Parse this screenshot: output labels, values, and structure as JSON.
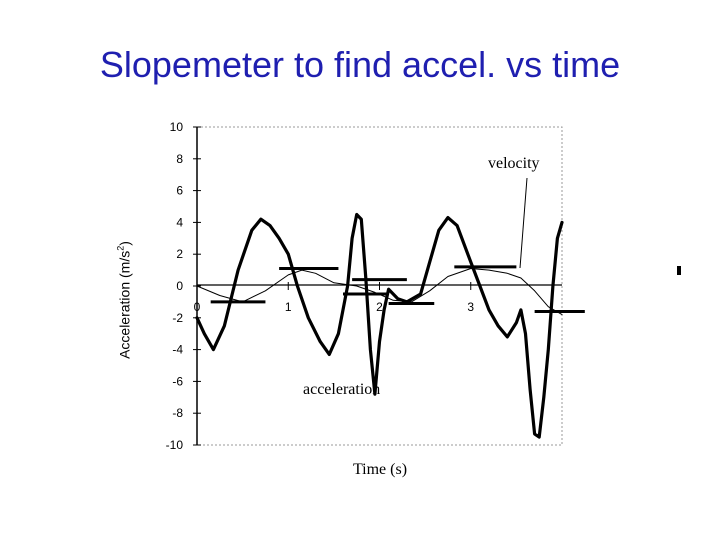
{
  "title": "Slopemeter to find accel. vs time",
  "chart_data": {
    "type": "line",
    "xlabel": "Time (s)",
    "ylabel_main": "Acceleration (m/s",
    "ylabel_sup": "2",
    "ylabel_tail": ")",
    "xlim": [
      0,
      4
    ],
    "ylim": [
      -10,
      10
    ],
    "y_ticks": [
      10,
      8,
      6,
      4,
      2,
      0,
      -2,
      -4,
      -6,
      -8,
      -10
    ],
    "x_ticks": [
      0,
      1,
      2,
      3
    ],
    "grid": false,
    "annotations": [
      "velocity",
      "acceleration"
    ],
    "series": [
      {
        "name": "acceleration",
        "x": [
          0,
          0.08,
          0.18,
          0.3,
          0.45,
          0.6,
          0.7,
          0.8,
          0.9,
          1.0,
          1.1,
          1.22,
          1.35,
          1.45,
          1.55,
          1.65,
          1.7,
          1.75,
          1.8,
          1.85,
          1.9,
          1.95,
          2.0,
          2.05,
          2.1,
          2.2,
          2.3,
          2.45,
          2.55,
          2.65,
          2.75,
          2.85,
          3.0,
          3.1,
          3.2,
          3.3,
          3.4,
          3.5,
          3.55,
          3.6,
          3.65,
          3.7,
          3.75,
          3.8,
          3.85,
          3.9,
          3.95,
          4.0
        ],
        "values": [
          -2,
          -3,
          -4,
          -2.5,
          1,
          3.5,
          4.2,
          3.8,
          3,
          2,
          0,
          -2,
          -3.5,
          -4.3,
          -3,
          0,
          3,
          4.5,
          4.2,
          0.5,
          -4,
          -6.8,
          -3.5,
          -1.5,
          -0.2,
          -0.8,
          -1,
          -0.5,
          1.5,
          3.5,
          4.3,
          3.8,
          1.5,
          0,
          -1.5,
          -2.5,
          -3.2,
          -2.3,
          -1.5,
          -3,
          -6.5,
          -9.3,
          -9.5,
          -7,
          -4,
          0,
          3,
          4
        ]
      },
      {
        "name": "velocity",
        "x": [
          0,
          0.25,
          0.5,
          0.75,
          1.0,
          1.15,
          1.3,
          1.5,
          1.75,
          1.95,
          2.15,
          2.35,
          2.55,
          2.75,
          3.0,
          3.2,
          3.4,
          3.55,
          3.7,
          3.85,
          4.0
        ],
        "values": [
          0,
          -0.6,
          -1.0,
          -0.3,
          0.7,
          1.0,
          0.8,
          0.2,
          0.0,
          -0.4,
          -0.9,
          -1.0,
          -0.3,
          0.6,
          1.1,
          1.0,
          0.8,
          0.5,
          -0.3,
          -1.3,
          -1.8
        ]
      }
    ],
    "tangent_marks": [
      {
        "y": -1.0,
        "x_from": 0.15,
        "x_to": 0.75
      },
      {
        "y": 1.1,
        "x_from": 0.9,
        "x_to": 1.55
      },
      {
        "y": -0.5,
        "x_from": 1.6,
        "x_to": 2.08
      },
      {
        "y": 0.4,
        "x_from": 1.7,
        "x_to": 2.3
      },
      {
        "y": -1.1,
        "x_from": 2.1,
        "x_to": 2.6
      },
      {
        "y": 1.2,
        "x_from": 2.82,
        "x_to": 3.5
      },
      {
        "y": -1.6,
        "x_from": 3.7,
        "x_to": 4.25
      }
    ]
  }
}
